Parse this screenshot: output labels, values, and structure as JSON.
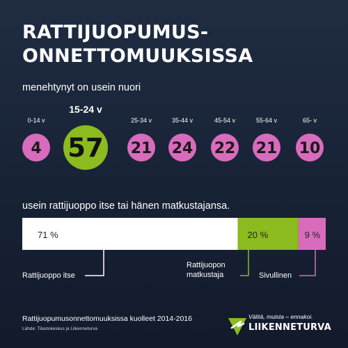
{
  "title_lines": [
    "RATTIJUOPUMUS-",
    "ONNETTOMUUKSISSA"
  ],
  "subtitle_ages": "menehtynyt on usein nuori",
  "subtitle_shares": "usein rattijuoppo itse tai hänen matkustajansa.",
  "footnote": "Rattijuopumusonnettomuuksissa kuolleet 2014-2016",
  "source": "Lähde: Tilastokeskus ja Liikenneturva",
  "logo": {
    "tagline": "Välitä, muista – ennakoi.",
    "name": "LIIKENNETURVA"
  },
  "colors": {
    "pink": "#d96bbd",
    "green": "#8bbb1f",
    "white": "#ffffff",
    "background": "#1a2438"
  },
  "chart_data": [
    {
      "type": "bubble",
      "categories": [
        "0-14 v",
        "15-24 v",
        "25-34 v",
        "35-44 v",
        "45-54 v",
        "55-64 v",
        "65- v"
      ],
      "values": [
        4,
        57,
        21,
        24,
        22,
        21,
        10
      ],
      "highlight": "15-24 v"
    },
    {
      "type": "stacked-bar",
      "categories": [
        "Rattijuoppo itse",
        "Rattijuopon matkustaja",
        "Sivullinen"
      ],
      "values": [
        71,
        20,
        9
      ],
      "value_labels": [
        "71 %",
        "20 %",
        "9 %"
      ],
      "colors": [
        "#ffffff",
        "#8bbb1f",
        "#d96bbd"
      ]
    }
  ]
}
